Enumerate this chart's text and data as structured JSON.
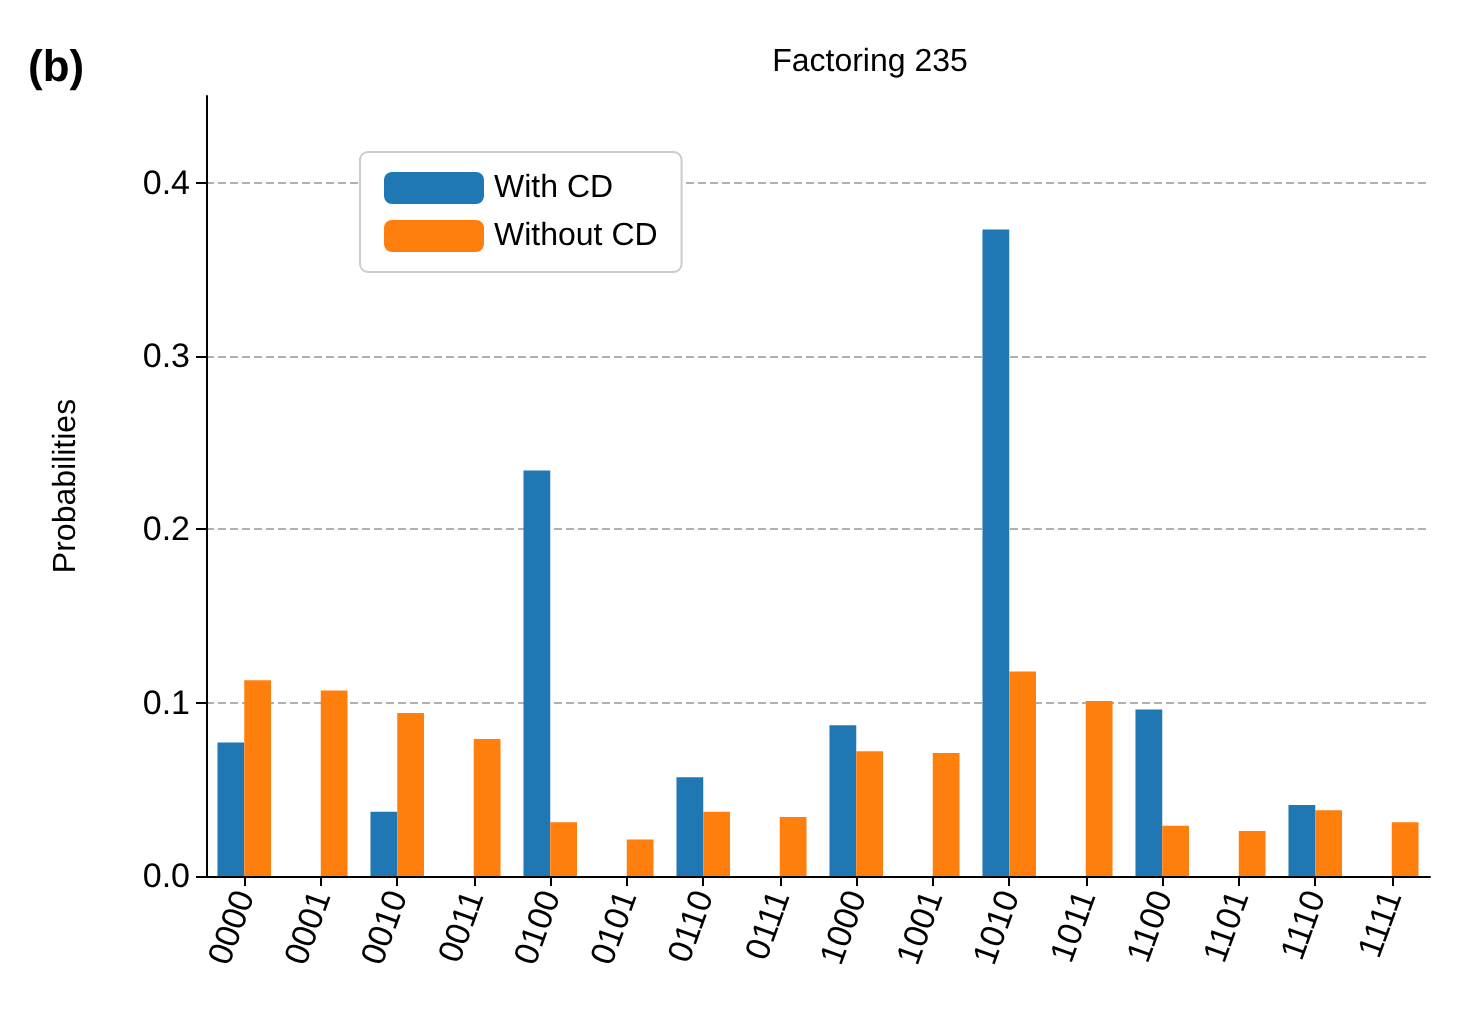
{
  "chart_data": {
    "type": "bar",
    "title": "Factoring 235",
    "ylabel": "Probabilities",
    "annotations": [
      "(b)"
    ],
    "categories": [
      "0000",
      "0001",
      "0010",
      "0011",
      "0100",
      "0101",
      "0110",
      "0111",
      "1000",
      "1001",
      "1010",
      "1011",
      "1100",
      "1101",
      "1110",
      "1111"
    ],
    "series": [
      {
        "name": "With CD",
        "color": "#1f77b4",
        "values": [
          0.077,
          0,
          0.037,
          0,
          0.234,
          0,
          0.057,
          0,
          0.087,
          0,
          0.373,
          0,
          0.096,
          0,
          0.041,
          0
        ]
      },
      {
        "name": "Without CD",
        "color": "#ff7f0e",
        "values": [
          0.113,
          0.107,
          0.094,
          0.079,
          0.031,
          0.021,
          0.037,
          0.034,
          0.072,
          0.071,
          0.118,
          0.101,
          0.029,
          0.026,
          0.038,
          0.031
        ]
      }
    ],
    "ylim": [
      0,
      0.45
    ],
    "yticks": [
      {
        "value": 0,
        "label": "0.0"
      },
      {
        "value": 0.1,
        "label": "0.1"
      },
      {
        "value": 0.2,
        "label": "0.2"
      },
      {
        "value": 0.3,
        "label": "0.3"
      },
      {
        "value": 0.4,
        "label": "0.4"
      }
    ],
    "grid": "y",
    "legend": "top left"
  }
}
